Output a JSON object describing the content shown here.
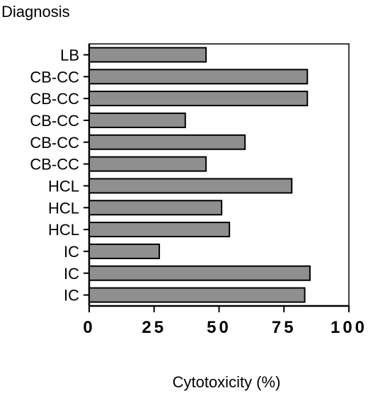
{
  "chart_data": {
    "type": "bar",
    "orientation": "horizontal",
    "ylabel": "Diagnosis",
    "xlabel": "Cytotoxicity (%)",
    "categories": [
      "LB",
      "CB-CC",
      "CB-CC",
      "CB-CC",
      "CB-CC",
      "CB-CC",
      "HCL",
      "HCL",
      "HCL",
      "IC",
      "IC",
      "IC"
    ],
    "values": [
      45,
      84,
      84,
      37,
      60,
      45,
      78,
      51,
      54,
      27,
      85,
      83
    ],
    "xlim": [
      0,
      100
    ],
    "xticks": [
      "0",
      "25",
      "50",
      "75",
      "100"
    ],
    "grid": false,
    "bar_color": "#8f8f8f"
  }
}
